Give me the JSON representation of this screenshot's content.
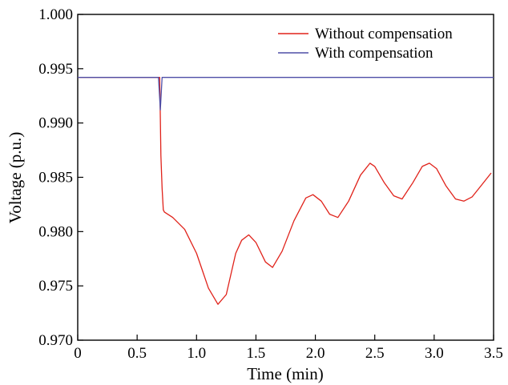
{
  "chart_data": {
    "type": "line",
    "title": "",
    "xlabel": "Time (min)",
    "ylabel": "Voltage (p.u.)",
    "xlim": [
      0,
      3.5
    ],
    "ylim": [
      0.97,
      1.0
    ],
    "x_ticks": [
      "0",
      "0.5",
      "1.0",
      "1.5",
      "2.0",
      "2.5",
      "3.0",
      "3.5"
    ],
    "y_ticks": [
      "0.970",
      "0.975",
      "0.980",
      "0.985",
      "0.990",
      "0.995",
      "1.000"
    ],
    "grid": false,
    "legend_position": "top-right",
    "series": [
      {
        "name": "Without compensation",
        "color": "#e0221a",
        "points": [
          [
            0,
            0.9942
          ],
          [
            0.69,
            0.9942
          ],
          [
            0.695,
            0.9905
          ],
          [
            0.7,
            0.987
          ],
          [
            0.71,
            0.984
          ],
          [
            0.72,
            0.982
          ],
          [
            0.73,
            0.9818
          ],
          [
            0.8,
            0.9813
          ],
          [
            0.9,
            0.9802
          ],
          [
            1.0,
            0.978
          ],
          [
            1.1,
            0.9748
          ],
          [
            1.18,
            0.9733
          ],
          [
            1.25,
            0.9742
          ],
          [
            1.33,
            0.978
          ],
          [
            1.38,
            0.9792
          ],
          [
            1.44,
            0.9797
          ],
          [
            1.5,
            0.979
          ],
          [
            1.58,
            0.9772
          ],
          [
            1.64,
            0.9767
          ],
          [
            1.72,
            0.9782
          ],
          [
            1.82,
            0.981
          ],
          [
            1.92,
            0.9831
          ],
          [
            1.98,
            0.9834
          ],
          [
            2.05,
            0.9828
          ],
          [
            2.12,
            0.9816
          ],
          [
            2.19,
            0.9813
          ],
          [
            2.28,
            0.9828
          ],
          [
            2.38,
            0.9852
          ],
          [
            2.46,
            0.9863
          ],
          [
            2.5,
            0.986
          ],
          [
            2.58,
            0.9845
          ],
          [
            2.66,
            0.9833
          ],
          [
            2.73,
            0.983
          ],
          [
            2.82,
            0.9845
          ],
          [
            2.9,
            0.986
          ],
          [
            2.96,
            0.9863
          ],
          [
            3.02,
            0.9858
          ],
          [
            3.1,
            0.9842
          ],
          [
            3.18,
            0.983
          ],
          [
            3.25,
            0.9828
          ],
          [
            3.32,
            0.9832
          ],
          [
            3.4,
            0.9843
          ],
          [
            3.48,
            0.9854
          ]
        ]
      },
      {
        "name": "With compensation",
        "color": "#4e4ea6",
        "points": [
          [
            0,
            0.9942
          ],
          [
            0.68,
            0.9942
          ],
          [
            0.695,
            0.9912
          ],
          [
            0.71,
            0.9942
          ],
          [
            3.5,
            0.9942
          ]
        ]
      }
    ]
  }
}
